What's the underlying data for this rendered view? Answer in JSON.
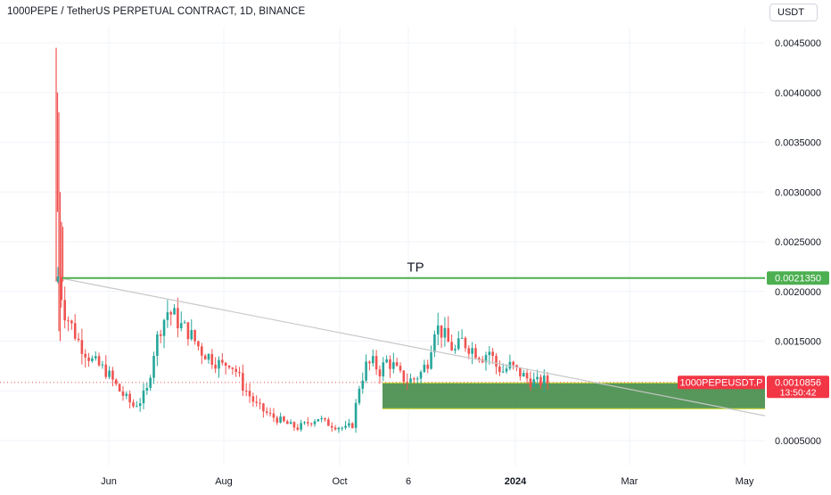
{
  "header": {
    "symbol_title": "1000PEPE / TetherUS PERPETUAL CONTRACT, 1D, BINANCE",
    "currency_button": "USDT"
  },
  "colors": {
    "up": "#26a69a",
    "down": "#ef5350",
    "green_line": "#4caf50",
    "trendline": "#c8c8c8",
    "zone_fill": "#2e7d32",
    "zone_border": "#cddc39",
    "price_tag": "#f23645"
  },
  "drawings": {
    "tp_label": "TP",
    "tp_level": 0.002135
  },
  "price_tags": {
    "tp_value": "0.0021350",
    "symbol_label": "1000PEPEUSDT.P",
    "last_price": "0.0010856",
    "countdown": "13:50:42"
  },
  "chart_data": {
    "type": "candlestick",
    "title": "1000PEPE / TetherUS PERPETUAL CONTRACT, 1D, BINANCE",
    "y_ticks": [
      "0.0045000",
      "0.0040000",
      "0.0035000",
      "0.0030000",
      "0.0025000",
      "0.0020000",
      "0.0015000",
      "0.0010000",
      "0.0005000"
    ],
    "ylim": [
      0.0003,
      0.0049
    ],
    "x_ticks": [
      "Jun",
      "Aug",
      "Oct",
      "6",
      "2024",
      "Mar",
      "May"
    ],
    "last_price": 0.0010856,
    "tp_level": 0.002135,
    "zone": {
      "top": 0.00108,
      "bottom": 0.00082
    },
    "trendline": {
      "start": 0.00213,
      "end_at_right_edge": 0.00075
    },
    "close_path": [
      [
        0,
        0.00215
      ],
      [
        2,
        0.0018
      ],
      [
        4,
        0.00165
      ],
      [
        6,
        0.0015
      ],
      [
        8,
        0.0014
      ],
      [
        10,
        0.0013
      ],
      [
        12,
        0.00125
      ],
      [
        14,
        0.0012
      ],
      [
        16,
        0.0011
      ],
      [
        18,
        0.001
      ],
      [
        20,
        0.00092
      ],
      [
        22,
        0.00085
      ],
      [
        24,
        0.0009
      ],
      [
        26,
        0.001
      ],
      [
        28,
        0.0014
      ],
      [
        30,
        0.00165
      ],
      [
        32,
        0.0018
      ],
      [
        34,
        0.00175
      ],
      [
        36,
        0.00165
      ],
      [
        38,
        0.0016
      ],
      [
        40,
        0.0015
      ],
      [
        42,
        0.0014
      ],
      [
        44,
        0.00135
      ],
      [
        46,
        0.0013
      ],
      [
        48,
        0.00125
      ],
      [
        50,
        0.0013
      ],
      [
        52,
        0.0012
      ],
      [
        54,
        0.00105
      ],
      [
        56,
        0.00095
      ],
      [
        58,
        0.00085
      ],
      [
        60,
        0.0008
      ],
      [
        62,
        0.00075
      ],
      [
        64,
        0.00072
      ],
      [
        66,
        0.00068
      ],
      [
        68,
        0.00065
      ],
      [
        70,
        0.00063
      ],
      [
        72,
        0.00066
      ],
      [
        74,
        0.0007
      ],
      [
        76,
        0.00073
      ],
      [
        78,
        0.00068
      ],
      [
        80,
        0.00066
      ],
      [
        82,
        0.00064
      ],
      [
        84,
        0.00062
      ],
      [
        86,
        0.00066
      ],
      [
        88,
        0.00105
      ],
      [
        90,
        0.00125
      ],
      [
        92,
        0.00128
      ],
      [
        94,
        0.0012
      ],
      [
        96,
        0.0013
      ],
      [
        98,
        0.00125
      ],
      [
        100,
        0.00115
      ],
      [
        102,
        0.0011
      ],
      [
        104,
        0.00112
      ],
      [
        106,
        0.00118
      ],
      [
        108,
        0.0013
      ],
      [
        110,
        0.00165
      ],
      [
        112,
        0.0016
      ],
      [
        114,
        0.00148
      ],
      [
        116,
        0.0014
      ],
      [
        118,
        0.0015
      ],
      [
        120,
        0.00145
      ],
      [
        122,
        0.0014
      ],
      [
        124,
        0.00135
      ],
      [
        126,
        0.0014
      ],
      [
        128,
        0.00125
      ],
      [
        130,
        0.0012
      ],
      [
        132,
        0.00125
      ],
      [
        134,
        0.0012
      ],
      [
        136,
        0.00115
      ],
      [
        138,
        0.0011
      ],
      [
        140,
        0.00108
      ],
      [
        142,
        0.0011
      ],
      [
        144,
        0.00108
      ]
    ]
  }
}
